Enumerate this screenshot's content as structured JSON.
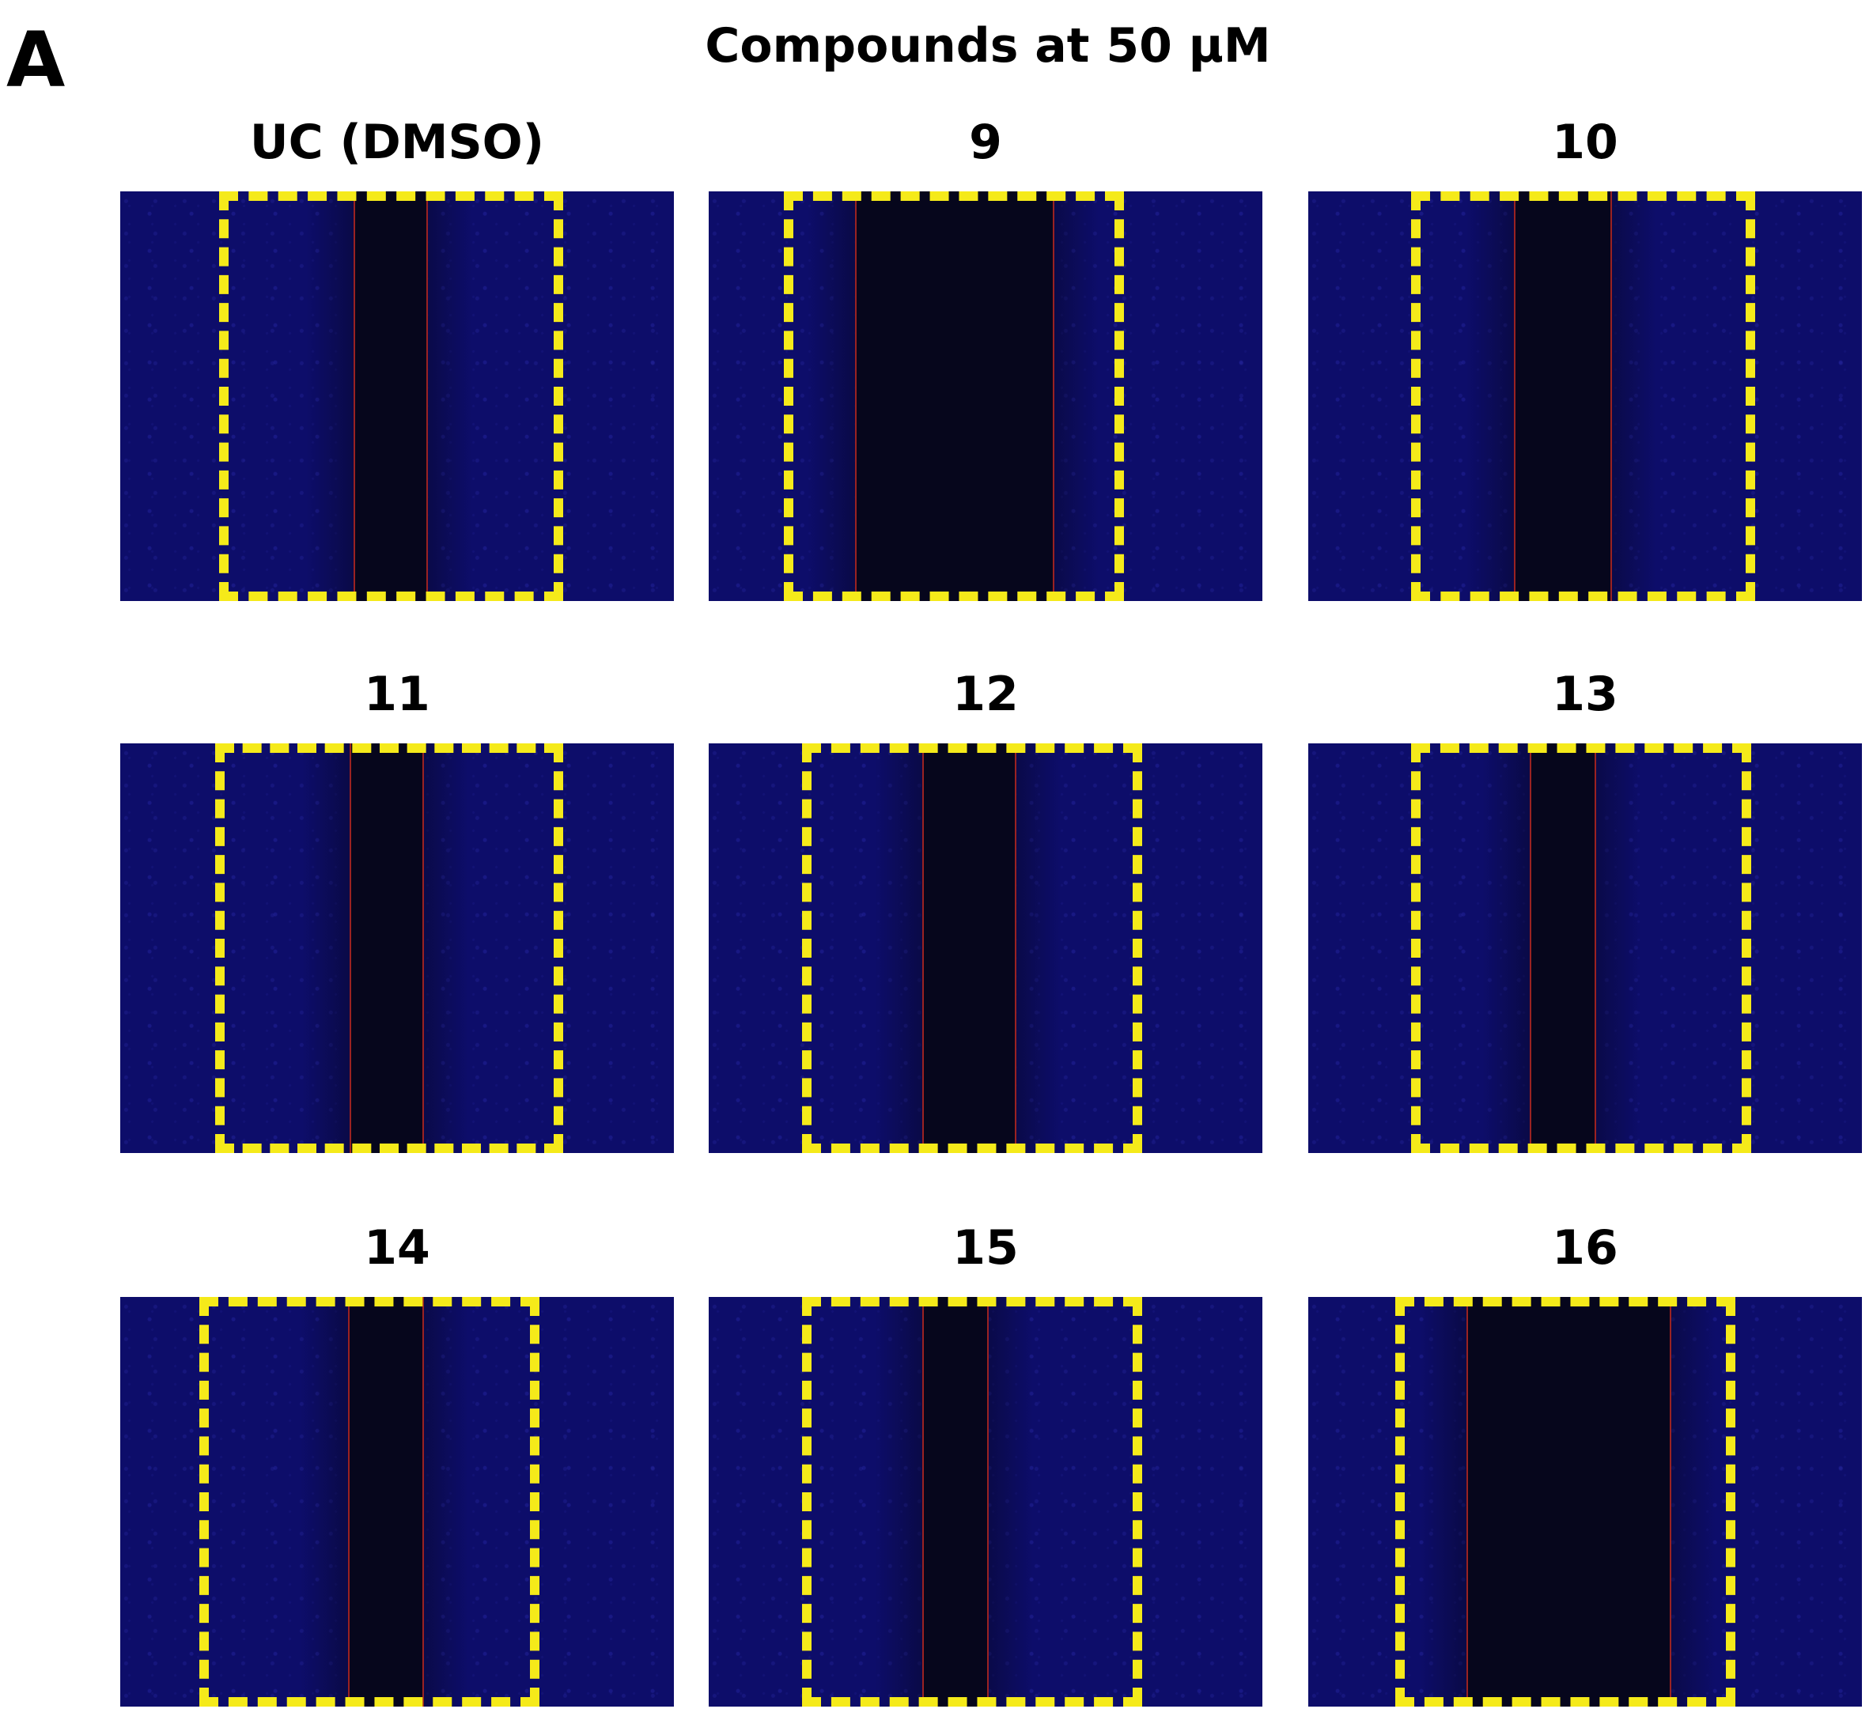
{
  "figure": {
    "panel_label": "A",
    "title": "Compounds at 50 µM"
  },
  "panels": [
    {
      "label": "UC (DMSO)"
    },
    {
      "label": "9"
    },
    {
      "label": "10"
    },
    {
      "label": "11"
    },
    {
      "label": "12"
    },
    {
      "label": "13"
    },
    {
      "label": "14"
    },
    {
      "label": "15"
    },
    {
      "label": "16"
    }
  ],
  "colors": {
    "cell_stain": "#0d0d6a",
    "wound_gap": "#06061c",
    "wound_edge_line": "#9a2222",
    "roi_box": "#f5ea1a"
  }
}
